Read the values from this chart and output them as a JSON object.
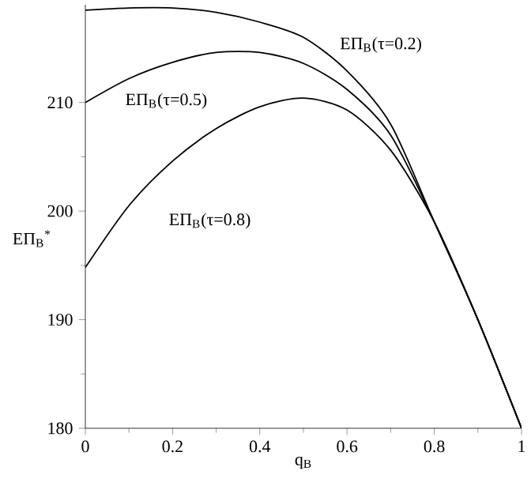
{
  "chart_data": {
    "type": "line",
    "xlabel": "q$_{B}$",
    "ylabel": "EΠ$_{B}$$^{*}$",
    "x": [
      0,
      0.1,
      0.2,
      0.3,
      0.4,
      0.5,
      0.6,
      0.7,
      0.8,
      0.9,
      1
    ],
    "series": [
      {
        "name": "EΠ$_{B}$(τ=0.2)",
        "color": "#000000",
        "values": [
          218.5,
          218.7,
          218.7,
          218.3,
          217.4,
          216.0,
          212.9,
          208.0,
          199,
          190,
          180
        ]
      },
      {
        "name": "EΠ$_{B}$(τ=0.5)",
        "color": "#000000",
        "values": [
          210,
          212.2,
          213.7,
          214.6,
          214.6,
          213.6,
          211.2,
          207.0,
          199,
          190,
          180
        ]
      },
      {
        "name": "EΠ$_{B}$(τ=0.8)",
        "color": "#000000",
        "values": [
          194.8,
          200.5,
          204.6,
          207.6,
          209.6,
          210.4,
          209.3,
          205.6,
          199,
          190,
          180
        ]
      }
    ],
    "xlim": [
      0,
      1
    ],
    "ylim": [
      180,
      219
    ],
    "xticks": [
      0,
      0.2,
      0.4,
      0.6,
      0.8,
      1
    ],
    "yticks": [
      180,
      190,
      200,
      210
    ],
    "grid": false,
    "marker": "none",
    "line_style": "solid"
  }
}
